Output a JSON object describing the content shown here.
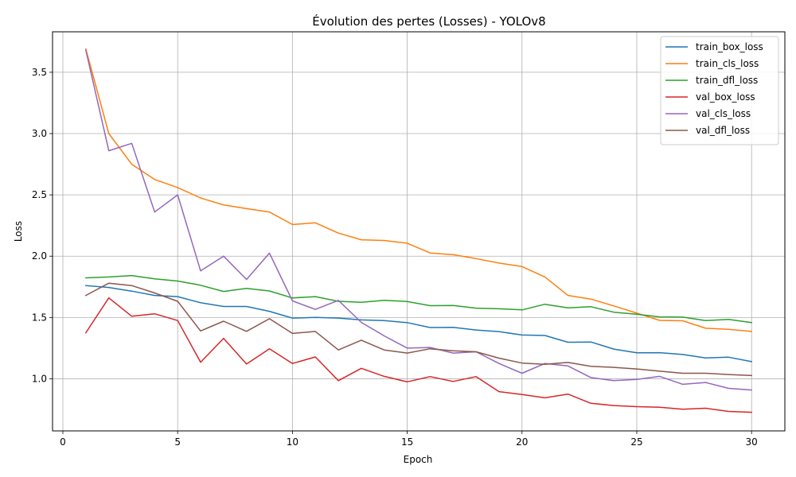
{
  "chart_data": {
    "type": "line",
    "title": "Évolution des pertes (Losses) - YOLOv8",
    "xlabel": "Epoch",
    "ylabel": "Loss",
    "xlim": [
      -0.45,
      31.45
    ],
    "ylim": [
      0.575,
      3.83
    ],
    "xticks": [
      0,
      5,
      10,
      15,
      20,
      25,
      30
    ],
    "yticks": [
      1.0,
      1.5,
      2.0,
      2.5,
      3.0,
      3.5
    ],
    "ytick_labels": [
      "1.0",
      "1.5",
      "2.0",
      "2.5",
      "3.0",
      "3.5"
    ],
    "grid": true,
    "legend_position": "top-right",
    "x": [
      1,
      2,
      3,
      4,
      5,
      6,
      7,
      8,
      9,
      10,
      11,
      12,
      13,
      14,
      15,
      16,
      17,
      18,
      19,
      20,
      21,
      22,
      23,
      24,
      25,
      26,
      27,
      28,
      29,
      30
    ],
    "series": [
      {
        "name": "train_box_loss",
        "color": "#1f77b4",
        "values": [
          1.76,
          1.745,
          1.715,
          1.68,
          1.67,
          1.62,
          1.59,
          1.59,
          1.55,
          1.495,
          1.5,
          1.495,
          1.48,
          1.475,
          1.458,
          1.418,
          1.42,
          1.398,
          1.385,
          1.357,
          1.353,
          1.298,
          1.3,
          1.242,
          1.212,
          1.213,
          1.198,
          1.17,
          1.176,
          1.14
        ]
      },
      {
        "name": "train_cls_loss",
        "color": "#ff7f0e",
        "values": [
          3.69,
          3.0,
          2.75,
          2.625,
          2.56,
          2.475,
          2.418,
          2.388,
          2.36,
          2.258,
          2.272,
          2.188,
          2.134,
          2.128,
          2.106,
          2.026,
          2.012,
          1.98,
          1.944,
          1.915,
          1.83,
          1.68,
          1.65,
          1.594,
          1.535,
          1.476,
          1.473,
          1.412,
          1.403,
          1.386
        ]
      },
      {
        "name": "train_dfl_loss",
        "color": "#2ca02c",
        "values": [
          1.823,
          1.83,
          1.842,
          1.815,
          1.797,
          1.763,
          1.712,
          1.737,
          1.716,
          1.659,
          1.67,
          1.632,
          1.624,
          1.64,
          1.63,
          1.596,
          1.598,
          1.576,
          1.571,
          1.562,
          1.608,
          1.578,
          1.588,
          1.543,
          1.526,
          1.505,
          1.503,
          1.475,
          1.485,
          1.458
        ]
      },
      {
        "name": "val_box_loss",
        "color": "#d62728",
        "values": [
          1.375,
          1.66,
          1.51,
          1.53,
          1.475,
          1.135,
          1.33,
          1.12,
          1.245,
          1.125,
          1.178,
          0.985,
          1.085,
          1.02,
          0.975,
          1.018,
          0.978,
          1.018,
          0.895,
          0.872,
          0.845,
          0.875,
          0.8,
          0.782,
          0.773,
          0.768,
          0.752,
          0.76,
          0.734,
          0.727
        ]
      },
      {
        "name": "val_cls_loss",
        "color": "#9467bd",
        "values": [
          3.68,
          2.86,
          2.92,
          2.36,
          2.5,
          1.88,
          2.0,
          1.81,
          2.025,
          1.635,
          1.566,
          1.64,
          1.46,
          1.35,
          1.25,
          1.255,
          1.21,
          1.22,
          1.125,
          1.045,
          1.125,
          1.105,
          1.01,
          0.985,
          0.995,
          1.02,
          0.955,
          0.97,
          0.922,
          0.908
        ]
      },
      {
        "name": "val_dfl_loss",
        "color": "#8c564b",
        "values": [
          1.68,
          1.78,
          1.76,
          1.7,
          1.632,
          1.39,
          1.47,
          1.387,
          1.49,
          1.37,
          1.386,
          1.235,
          1.315,
          1.235,
          1.21,
          1.245,
          1.228,
          1.22,
          1.168,
          1.128,
          1.118,
          1.133,
          1.102,
          1.093,
          1.08,
          1.062,
          1.045,
          1.045,
          1.035,
          1.026
        ]
      }
    ]
  }
}
